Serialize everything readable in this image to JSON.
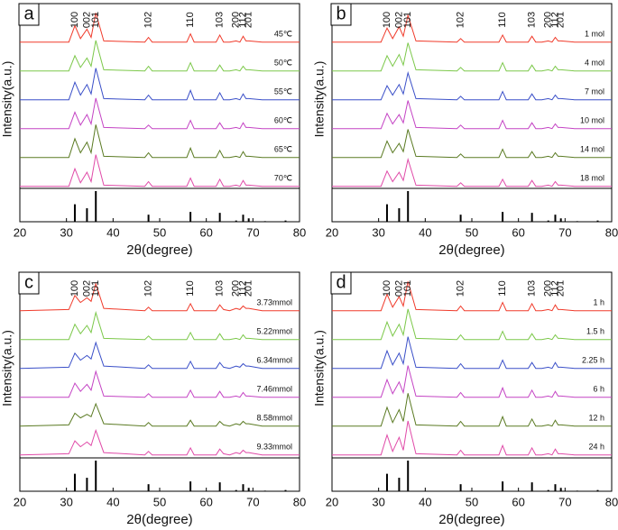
{
  "chart_data": [
    {
      "type": "line",
      "panel_label": "a",
      "xlabel": "2θ(degree)",
      "ylabel": "Intensity(a.u.)",
      "x": [
        20,
        30.5,
        31.8,
        33,
        34.4,
        35.3,
        36.3,
        38,
        46.8,
        47.6,
        48.4,
        55.8,
        56.6,
        57.4,
        62.1,
        62.9,
        63.7,
        65,
        66.4,
        67.2,
        67.9,
        68.5,
        69.1,
        72,
        80
      ],
      "xlim": [
        20,
        80
      ],
      "xticks": [
        20,
        30,
        40,
        50,
        60,
        70,
        80
      ],
      "peak_labels": [
        "100",
        "002",
        "101",
        "102",
        "110",
        "103",
        "200",
        "112",
        "201"
      ],
      "series": [
        {
          "name": "45℃",
          "color": "#f03a2a",
          "values": [
            1,
            1,
            15,
            4,
            12,
            5,
            26,
            2,
            1,
            5,
            1,
            1,
            8,
            1,
            1,
            7,
            1,
            1,
            2,
            1,
            6,
            2,
            2,
            1,
            1
          ]
        },
        {
          "name": "50℃",
          "color": "#7cc84a",
          "values": [
            1,
            1,
            14,
            4,
            12,
            5,
            27,
            2,
            1,
            5,
            1,
            1,
            8,
            1,
            1,
            6,
            1,
            1,
            2,
            1,
            5,
            2,
            2,
            1,
            1
          ]
        },
        {
          "name": "55℃",
          "color": "#3a4fc8",
          "values": [
            1,
            1,
            16,
            5,
            14,
            6,
            28,
            2,
            1,
            5,
            1,
            1,
            9,
            1,
            1,
            7,
            1,
            1,
            2,
            1,
            6,
            2,
            2,
            1,
            1
          ]
        },
        {
          "name": "60℃",
          "color": "#c444c4",
          "values": [
            1,
            1,
            15,
            4,
            13,
            5,
            27,
            2,
            1,
            4,
            1,
            1,
            8,
            1,
            1,
            6,
            1,
            1,
            2,
            1,
            6,
            2,
            2,
            1,
            1
          ]
        },
        {
          "name": "65℃",
          "color": "#5a7a22",
          "values": [
            1,
            1,
            17,
            5,
            14,
            5,
            29,
            2,
            1,
            5,
            1,
            1,
            9,
            1,
            1,
            7,
            1,
            1,
            2,
            1,
            6,
            2,
            2,
            1,
            1
          ]
        },
        {
          "name": "70℃",
          "color": "#e04aa8",
          "values": [
            1,
            1,
            16,
            4,
            13,
            5,
            28,
            2,
            1,
            5,
            1,
            1,
            8,
            1,
            1,
            7,
            1,
            1,
            2,
            1,
            6,
            2,
            2,
            1,
            1
          ]
        }
      ],
      "reference": {
        "x": [
          31.8,
          34.4,
          36.3,
          47.6,
          56.6,
          62.9,
          66.4,
          67.9,
          69.1,
          72.6,
          77
        ],
        "values": [
          57,
          44,
          100,
          23,
          32,
          29,
          4,
          23,
          11,
          2,
          4
        ]
      }
    },
    {
      "type": "line",
      "panel_label": "b",
      "xlabel": "2θ(degree)",
      "ylabel": "Intensity(a.u.)",
      "x": [
        20,
        30.5,
        31.8,
        33,
        34.4,
        35.3,
        36.3,
        38,
        46.8,
        47.6,
        48.4,
        55.8,
        56.6,
        57.4,
        62.1,
        62.9,
        63.7,
        65,
        66.4,
        67.2,
        67.9,
        68.5,
        69.1,
        72,
        80
      ],
      "xlim": [
        20,
        80
      ],
      "xticks": [
        20,
        30,
        40,
        50,
        60,
        70,
        80
      ],
      "peak_labels": [
        "100",
        "002",
        "101",
        "102",
        "110",
        "103",
        "200",
        "112",
        "201"
      ],
      "series": [
        {
          "name": "1 mol",
          "color": "#f03a2a",
          "values": [
            1,
            1,
            13,
            4,
            14,
            6,
            24,
            2,
            1,
            4,
            1,
            1,
            7,
            1,
            1,
            6,
            1,
            1,
            2,
            1,
            5,
            2,
            2,
            1,
            1
          ]
        },
        {
          "name": "4 mol",
          "color": "#7cc84a",
          "values": [
            1,
            1,
            14,
            5,
            15,
            6,
            25,
            2,
            1,
            4,
            1,
            1,
            8,
            1,
            1,
            6,
            1,
            1,
            2,
            1,
            5,
            2,
            2,
            1,
            1
          ]
        },
        {
          "name": "7 mol",
          "color": "#3a4fc8",
          "values": [
            1,
            1,
            13,
            5,
            14,
            6,
            24,
            2,
            1,
            4,
            1,
            1,
            8,
            1,
            1,
            6,
            1,
            1,
            2,
            1,
            5,
            2,
            2,
            1,
            1
          ]
        },
        {
          "name": "10 mol",
          "color": "#c444c4",
          "values": [
            1,
            1,
            14,
            5,
            13,
            6,
            25,
            2,
            1,
            4,
            1,
            1,
            8,
            1,
            1,
            6,
            1,
            1,
            2,
            1,
            5,
            2,
            2,
            1,
            1
          ]
        },
        {
          "name": "14 mol",
          "color": "#5a7a22",
          "values": [
            1,
            1,
            15,
            5,
            13,
            6,
            25,
            2,
            1,
            4,
            1,
            1,
            8,
            1,
            1,
            6,
            1,
            1,
            2,
            1,
            5,
            2,
            2,
            1,
            1
          ]
        },
        {
          "name": "18 mol",
          "color": "#e04aa8",
          "values": [
            1,
            1,
            14,
            5,
            13,
            6,
            24,
            2,
            1,
            4,
            1,
            1,
            7,
            1,
            1,
            6,
            1,
            1,
            2,
            1,
            5,
            2,
            2,
            1,
            1
          ]
        }
      ],
      "reference": {
        "x": [
          31.8,
          34.4,
          36.3,
          47.6,
          56.6,
          62.9,
          66.4,
          67.9,
          69.1,
          72.6,
          77
        ],
        "values": [
          57,
          44,
          100,
          23,
          32,
          29,
          4,
          23,
          11,
          2,
          4
        ]
      }
    },
    {
      "type": "line",
      "panel_label": "c",
      "xlabel": "2θ(degree)",
      "ylabel": "Intensity(a.u.)",
      "x": [
        20,
        30.5,
        31.8,
        33,
        34.4,
        35.3,
        36.3,
        38,
        46.8,
        47.6,
        48.4,
        55.8,
        56.6,
        57.4,
        62.1,
        62.9,
        63.7,
        65,
        66.4,
        67.2,
        67.9,
        68.5,
        69.1,
        72,
        80
      ],
      "xlim": [
        20,
        80
      ],
      "xticks": [
        20,
        30,
        40,
        50,
        60,
        70,
        80
      ],
      "peak_labels": [
        "100",
        "002",
        "101",
        "102",
        "110",
        "103",
        "200",
        "112",
        "201"
      ],
      "series": [
        {
          "name": "3.73mmol",
          "color": "#f03a2a",
          "values": [
            1,
            2,
            14,
            8,
            12,
            9,
            24,
            3,
            1,
            4,
            1,
            1,
            7,
            1,
            1,
            6,
            2,
            1,
            3,
            2,
            5,
            3,
            3,
            1,
            1
          ]
        },
        {
          "name": "5.22mmol",
          "color": "#7cc84a",
          "values": [
            1,
            1,
            14,
            6,
            13,
            7,
            24,
            2,
            1,
            4,
            1,
            1,
            7,
            1,
            1,
            6,
            1,
            1,
            2,
            1,
            5,
            2,
            2,
            1,
            1
          ]
        },
        {
          "name": "6.34mmol",
          "color": "#3a4fc8",
          "values": [
            1,
            2,
            14,
            8,
            12,
            9,
            23,
            3,
            1,
            4,
            1,
            1,
            7,
            1,
            1,
            6,
            2,
            1,
            3,
            2,
            5,
            3,
            3,
            1,
            1
          ]
        },
        {
          "name": "7.46mmol",
          "color": "#c444c4",
          "values": [
            1,
            1,
            13,
            6,
            12,
            7,
            23,
            2,
            1,
            4,
            1,
            1,
            7,
            1,
            1,
            6,
            1,
            1,
            2,
            1,
            5,
            2,
            2,
            1,
            1
          ]
        },
        {
          "name": "8.58mmol",
          "color": "#5a7a22",
          "values": [
            1,
            2,
            12,
            8,
            11,
            9,
            20,
            3,
            1,
            4,
            1,
            1,
            6,
            1,
            1,
            5,
            2,
            1,
            3,
            2,
            5,
            3,
            3,
            1,
            1
          ]
        },
        {
          "name": "9.33mmol",
          "color": "#e04aa8",
          "values": [
            1,
            2,
            13,
            8,
            12,
            9,
            22,
            3,
            1,
            4,
            1,
            1,
            7,
            1,
            1,
            6,
            2,
            1,
            3,
            2,
            5,
            3,
            3,
            1,
            1
          ]
        }
      ],
      "reference": {
        "x": [
          31.8,
          34.4,
          36.3,
          47.6,
          56.6,
          62.9,
          66.4,
          67.9,
          69.1,
          72.6,
          77
        ],
        "values": [
          57,
          44,
          100,
          23,
          32,
          29,
          4,
          23,
          11,
          2,
          4
        ]
      }
    },
    {
      "type": "line",
      "panel_label": "d",
      "xlabel": "2θ(degree)",
      "ylabel": "Intensity(a.u.)",
      "x": [
        20,
        30.5,
        31.8,
        33,
        34.4,
        35.3,
        36.3,
        38,
        46.8,
        47.6,
        48.4,
        55.8,
        56.6,
        57.4,
        62.1,
        62.9,
        63.7,
        65,
        66.4,
        67.2,
        67.9,
        68.5,
        69.1,
        72,
        80
      ],
      "xlim": [
        20,
        80
      ],
      "xticks": [
        20,
        30,
        40,
        50,
        60,
        70,
        80
      ],
      "peak_labels": [
        "100",
        "002",
        "101",
        "102",
        "110",
        "103",
        "200",
        "112",
        "201"
      ],
      "series": [
        {
          "name": "1 h",
          "color": "#f03a2a",
          "values": [
            1,
            1,
            15,
            4,
            13,
            5,
            26,
            2,
            1,
            5,
            1,
            1,
            8,
            1,
            1,
            7,
            1,
            1,
            2,
            1,
            6,
            2,
            2,
            1,
            1
          ]
        },
        {
          "name": "1.5 h",
          "color": "#7cc84a",
          "values": [
            1,
            1,
            16,
            4,
            14,
            5,
            27,
            2,
            1,
            5,
            1,
            1,
            8,
            1,
            1,
            6,
            1,
            1,
            2,
            1,
            5,
            2,
            2,
            1,
            1
          ]
        },
        {
          "name": "2.25 h",
          "color": "#3a4fc8",
          "values": [
            1,
            1,
            16,
            4,
            14,
            5,
            28,
            2,
            1,
            5,
            1,
            1,
            8,
            1,
            1,
            6,
            1,
            1,
            2,
            1,
            6,
            2,
            2,
            1,
            1
          ]
        },
        {
          "name": "6 h",
          "color": "#c444c4",
          "values": [
            1,
            1,
            16,
            4,
            14,
            5,
            28,
            2,
            1,
            5,
            1,
            1,
            9,
            1,
            1,
            7,
            1,
            1,
            2,
            1,
            6,
            2,
            2,
            1,
            1
          ]
        },
        {
          "name": "12 h",
          "color": "#5a7a22",
          "values": [
            1,
            1,
            17,
            4,
            15,
            5,
            29,
            2,
            1,
            5,
            1,
            1,
            9,
            1,
            1,
            7,
            1,
            1,
            2,
            1,
            6,
            2,
            2,
            1,
            1
          ]
        },
        {
          "name": "24 h",
          "color": "#e04aa8",
          "values": [
            1,
            1,
            18,
            4,
            16,
            5,
            30,
            2,
            1,
            5,
            1,
            1,
            9,
            1,
            1,
            7,
            1,
            1,
            2,
            1,
            6,
            2,
            2,
            1,
            1
          ]
        }
      ],
      "reference": {
        "x": [
          31.8,
          34.4,
          36.3,
          47.6,
          56.6,
          62.9,
          66.4,
          67.9,
          69.1,
          72.6,
          77
        ],
        "values": [
          57,
          44,
          100,
          23,
          32,
          29,
          4,
          23,
          11,
          2,
          4
        ]
      }
    }
  ]
}
